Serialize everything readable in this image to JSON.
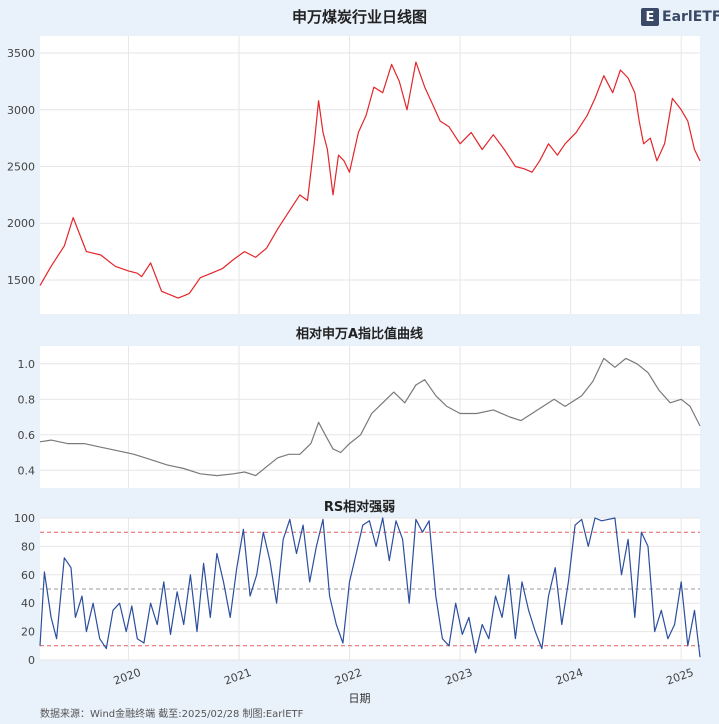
{
  "titles": {
    "main": "申万煤炭行业日线图",
    "relative": "相对申万A指比值曲线",
    "rs": "RS相对强弱"
  },
  "logo": {
    "mark": "E",
    "text": "EarlETF"
  },
  "footer": "数据来源：Wind金融终端 截至:2025/02/28 制图:EarlETF",
  "xlabel": "日期",
  "colors": {
    "price_line": "#e3262b",
    "relative_line": "#7a7a7a",
    "rs_line": "#2b4e9e",
    "threshold_line": "#e06060",
    "mid_line": "#999999",
    "panel_bg": "#ffffff",
    "grid": "#e6e6e6"
  },
  "chart_data": [
    {
      "type": "line",
      "title": "申万煤炭行业日线图",
      "ylim": [
        1200,
        3650
      ],
      "yticks": [
        "1500",
        "2000",
        "2500",
        "3000",
        "3500"
      ],
      "xlim": [
        2019.2,
        2025.17
      ],
      "xticks": [
        "2020",
        "2021",
        "2022",
        "2023",
        "2024",
        "2025"
      ],
      "grid": true,
      "series": [
        {
          "x": [
            2019.2,
            2019.3,
            2019.42,
            2019.5,
            2019.62,
            2019.75,
            2019.88,
            2020.0,
            2020.08,
            2020.12,
            2020.2,
            2020.3,
            2020.45,
            2020.55,
            2020.65,
            2020.75,
            2020.85,
            2020.95,
            2021.05,
            2021.15,
            2021.25,
            2021.35,
            2021.45,
            2021.55,
            2021.62,
            2021.68,
            2021.72,
            2021.76,
            2021.8,
            2021.85,
            2021.9,
            2021.95,
            2022.0,
            2022.08,
            2022.15,
            2022.22,
            2022.3,
            2022.38,
            2022.45,
            2022.52,
            2022.6,
            2022.68,
            2022.75,
            2022.82,
            2022.9,
            2023.0,
            2023.1,
            2023.2,
            2023.3,
            2023.4,
            2023.5,
            2023.58,
            2023.65,
            2023.72,
            2023.8,
            2023.88,
            2023.95,
            2024.05,
            2024.15,
            2024.22,
            2024.3,
            2024.38,
            2024.45,
            2024.52,
            2024.58,
            2024.62,
            2024.66,
            2024.72,
            2024.78,
            2024.85,
            2024.92,
            2025.0,
            2025.06,
            2025.12,
            2025.17
          ],
          "y": [
            1450,
            1620,
            1800,
            2050,
            1750,
            1720,
            1620,
            1580,
            1560,
            1530,
            1650,
            1400,
            1340,
            1380,
            1520,
            1560,
            1600,
            1680,
            1750,
            1700,
            1780,
            1950,
            2100,
            2250,
            2200,
            2700,
            3080,
            2800,
            2650,
            2250,
            2600,
            2550,
            2450,
            2800,
            2950,
            3200,
            3150,
            3400,
            3250,
            3000,
            3420,
            3200,
            3050,
            2900,
            2850,
            2700,
            2800,
            2650,
            2780,
            2650,
            2500,
            2480,
            2450,
            2550,
            2700,
            2600,
            2700,
            2800,
            2950,
            3100,
            3300,
            3150,
            3350,
            3280,
            3150,
            2900,
            2700,
            2750,
            2550,
            2700,
            3100,
            3000,
            2900,
            2650,
            2550
          ]
        }
      ]
    },
    {
      "type": "line",
      "title": "相对申万A指比值曲线",
      "ylim": [
        0.3,
        1.1
      ],
      "yticks": [
        "0.4",
        "0.6",
        "0.8",
        "1.0"
      ],
      "xlim": [
        2019.2,
        2025.17
      ],
      "grid": true,
      "series": [
        {
          "x": [
            2019.2,
            2019.3,
            2019.45,
            2019.6,
            2019.75,
            2019.9,
            2020.05,
            2020.2,
            2020.35,
            2020.5,
            2020.65,
            2020.8,
            2020.95,
            2021.05,
            2021.15,
            2021.25,
            2021.35,
            2021.45,
            2021.55,
            2021.65,
            2021.72,
            2021.78,
            2021.85,
            2021.92,
            2022.0,
            2022.1,
            2022.2,
            2022.3,
            2022.4,
            2022.5,
            2022.6,
            2022.68,
            2022.78,
            2022.88,
            2023.0,
            2023.15,
            2023.3,
            2023.45,
            2023.55,
            2023.65,
            2023.75,
            2023.85,
            2023.95,
            2024.1,
            2024.2,
            2024.3,
            2024.4,
            2024.5,
            2024.6,
            2024.7,
            2024.8,
            2024.9,
            2025.0,
            2025.08,
            2025.17
          ],
          "y": [
            0.56,
            0.57,
            0.55,
            0.55,
            0.53,
            0.51,
            0.49,
            0.46,
            0.43,
            0.41,
            0.38,
            0.37,
            0.38,
            0.39,
            0.37,
            0.42,
            0.47,
            0.49,
            0.49,
            0.55,
            0.67,
            0.6,
            0.52,
            0.5,
            0.55,
            0.6,
            0.72,
            0.78,
            0.84,
            0.78,
            0.88,
            0.91,
            0.82,
            0.76,
            0.72,
            0.72,
            0.74,
            0.7,
            0.68,
            0.72,
            0.76,
            0.8,
            0.76,
            0.82,
            0.9,
            1.03,
            0.98,
            1.03,
            1.0,
            0.95,
            0.85,
            0.78,
            0.8,
            0.76,
            0.65
          ]
        }
      ]
    },
    {
      "type": "line",
      "title": "RS相对强弱",
      "ylim": [
        0,
        100
      ],
      "yticks": [
        "0",
        "20",
        "40",
        "60",
        "80",
        "100"
      ],
      "xlim": [
        2019.2,
        2025.17
      ],
      "xticks": [
        "2020",
        "2021",
        "2022",
        "2023",
        "2024",
        "2025"
      ],
      "xlabel": "日期",
      "reference_lines": [
        90,
        50,
        10
      ],
      "grid": true,
      "series": [
        {
          "x": [
            2019.2,
            2019.24,
            2019.3,
            2019.35,
            2019.42,
            2019.48,
            2019.52,
            2019.58,
            2019.62,
            2019.68,
            2019.74,
            2019.8,
            2019.86,
            2019.92,
            2019.98,
            2020.03,
            2020.08,
            2020.14,
            2020.2,
            2020.26,
            2020.32,
            2020.38,
            2020.44,
            2020.5,
            2020.56,
            2020.62,
            2020.68,
            2020.74,
            2020.8,
            2020.86,
            2020.92,
            2020.98,
            2021.04,
            2021.1,
            2021.16,
            2021.22,
            2021.28,
            2021.34,
            2021.4,
            2021.46,
            2021.52,
            2021.58,
            2021.64,
            2021.7,
            2021.76,
            2021.82,
            2021.88,
            2021.94,
            2022.0,
            2022.06,
            2022.12,
            2022.18,
            2022.24,
            2022.3,
            2022.36,
            2022.42,
            2022.48,
            2022.54,
            2022.6,
            2022.66,
            2022.72,
            2022.78,
            2022.84,
            2022.9,
            2022.96,
            2023.02,
            2023.08,
            2023.14,
            2023.2,
            2023.26,
            2023.32,
            2023.38,
            2023.44,
            2023.5,
            2023.56,
            2023.62,
            2023.68,
            2023.74,
            2023.8,
            2023.86,
            2023.92,
            2023.98,
            2024.04,
            2024.1,
            2024.16,
            2024.22,
            2024.28,
            2024.34,
            2024.4,
            2024.46,
            2024.52,
            2024.58,
            2024.64,
            2024.7,
            2024.76,
            2024.82,
            2024.88,
            2024.94,
            2025.0,
            2025.06,
            2025.12,
            2025.17
          ],
          "y": [
            10,
            62,
            30,
            15,
            72,
            65,
            30,
            45,
            20,
            40,
            15,
            8,
            35,
            40,
            20,
            38,
            15,
            12,
            40,
            25,
            55,
            18,
            48,
            25,
            60,
            20,
            68,
            30,
            75,
            55,
            30,
            65,
            92,
            45,
            60,
            90,
            70,
            40,
            85,
            99,
            75,
            95,
            55,
            80,
            99,
            45,
            25,
            12,
            55,
            75,
            95,
            98,
            80,
            100,
            70,
            98,
            85,
            40,
            99,
            90,
            98,
            45,
            15,
            10,
            40,
            18,
            30,
            5,
            25,
            15,
            45,
            30,
            60,
            15,
            55,
            35,
            20,
            8,
            45,
            65,
            25,
            55,
            95,
            99,
            80,
            100,
            98,
            99,
            100,
            60,
            85,
            30,
            90,
            80,
            20,
            35,
            15,
            25,
            55,
            10,
            35,
            2
          ]
        }
      ]
    }
  ]
}
